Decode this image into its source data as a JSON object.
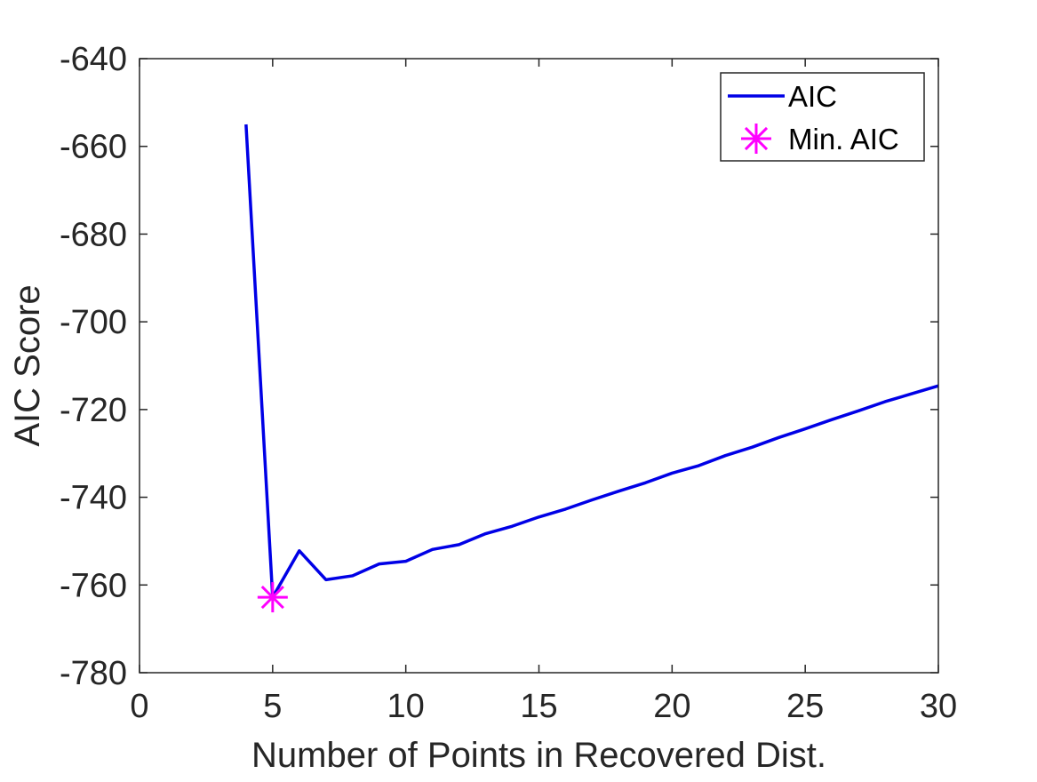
{
  "chart_data": {
    "type": "line",
    "title": "",
    "xlabel": "Number of Points in Recovered Dist.",
    "ylabel": "AIC Score",
    "xlim": [
      0,
      30
    ],
    "ylim": [
      -780,
      -640
    ],
    "xticks": [
      0,
      5,
      10,
      15,
      20,
      25,
      30
    ],
    "yticks": [
      -640,
      -660,
      -680,
      -700,
      -720,
      -740,
      -760,
      -780
    ],
    "grid": false,
    "legend_position": "top-right",
    "series": [
      {
        "name": "AIC",
        "color": "#0000e6",
        "style": "line",
        "x": [
          4,
          5,
          6,
          7,
          8,
          9,
          10,
          11,
          12,
          13,
          14,
          15,
          16,
          17,
          18,
          19,
          20,
          21,
          22,
          23,
          24,
          25,
          26,
          27,
          28,
          29,
          30
        ],
        "y": [
          -655,
          -762.8,
          -752.2,
          -758.8,
          -757.9,
          -755.2,
          -754.6,
          -751.9,
          -750.8,
          -748.3,
          -746.6,
          -744.5,
          -742.7,
          -740.6,
          -738.6,
          -736.7,
          -734.5,
          -732.8,
          -730.5,
          -728.6,
          -726.4,
          -724.4,
          -722.3,
          -720.3,
          -718.2,
          -716.4,
          -714.6
        ]
      },
      {
        "name": "Min. AIC",
        "color": "#ff00ff",
        "style": "marker-asterisk",
        "x": [
          5
        ],
        "y": [
          -762.8
        ]
      }
    ]
  }
}
